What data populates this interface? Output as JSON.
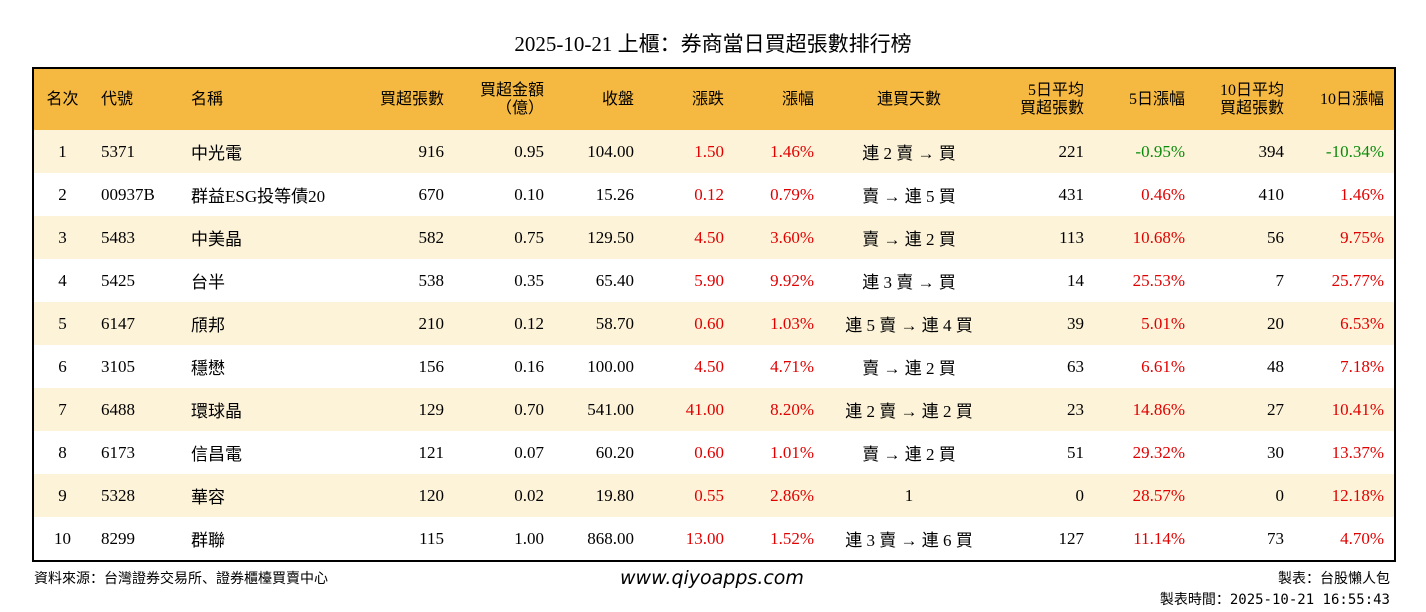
{
  "header": {
    "title": "2025-10-21 上櫃：券商當日買超張數排行榜"
  },
  "table": {
    "columns": [
      "名次",
      "代號",
      "名稱",
      "買超張數",
      "買超金額\n（億）",
      "收盤",
      "漲跌",
      "漲幅",
      "連買天數",
      "5日平均\n買超張數",
      "5日漲幅",
      "10日平均\n買超張數",
      "10日漲幅"
    ],
    "rows": [
      [
        "1",
        "5371",
        "中光電",
        "916",
        "0.95",
        "104.00",
        "1.50",
        "1.46%",
        "連 2 賣 → 買",
        "221",
        "-0.95%",
        "394",
        "-10.34%"
      ],
      [
        "2",
        "00937B",
        "群益ESG投等債20",
        "670",
        "0.10",
        "15.26",
        "0.12",
        "0.79%",
        "賣 → 連 5 買",
        "431",
        "0.46%",
        "410",
        "1.46%"
      ],
      [
        "3",
        "5483",
        "中美晶",
        "582",
        "0.75",
        "129.50",
        "4.50",
        "3.60%",
        "賣 → 連 2 買",
        "113",
        "10.68%",
        "56",
        "9.75%"
      ],
      [
        "4",
        "5425",
        "台半",
        "538",
        "0.35",
        "65.40",
        "5.90",
        "9.92%",
        "連 3 賣 → 買",
        "14",
        "25.53%",
        "7",
        "25.77%"
      ],
      [
        "5",
        "6147",
        "頎邦",
        "210",
        "0.12",
        "58.70",
        "0.60",
        "1.03%",
        "連 5 賣 → 連 4 買",
        "39",
        "5.01%",
        "20",
        "6.53%"
      ],
      [
        "6",
        "3105",
        "穩懋",
        "156",
        "0.16",
        "100.00",
        "4.50",
        "4.71%",
        "賣 → 連 2 買",
        "63",
        "6.61%",
        "48",
        "7.18%"
      ],
      [
        "7",
        "6488",
        "環球晶",
        "129",
        "0.70",
        "541.00",
        "41.00",
        "8.20%",
        "連 2 賣 → 連 2 買",
        "23",
        "14.86%",
        "27",
        "10.41%"
      ],
      [
        "8",
        "6173",
        "信昌電",
        "121",
        "0.07",
        "60.20",
        "0.60",
        "1.01%",
        "賣 → 連 2 買",
        "51",
        "29.32%",
        "30",
        "13.37%"
      ],
      [
        "9",
        "5328",
        "華容",
        "120",
        "0.02",
        "19.80",
        "0.55",
        "2.86%",
        "1",
        "0",
        "28.57%",
        "0",
        "12.18%"
      ],
      [
        "10",
        "8299",
        "群聯",
        "115",
        "1.00",
        "868.00",
        "13.00",
        "1.52%",
        "連 3 賣 → 連 6 買",
        "127",
        "11.14%",
        "73",
        "4.70%"
      ]
    ]
  },
  "footer": {
    "source": "資料來源：台灣證券交易所、證券櫃檯買賣中心",
    "site": "www.qiyoapps.com",
    "maker": "製表：台股懶人包",
    "time": "製表時間：2025-10-21 16:55:43"
  }
}
